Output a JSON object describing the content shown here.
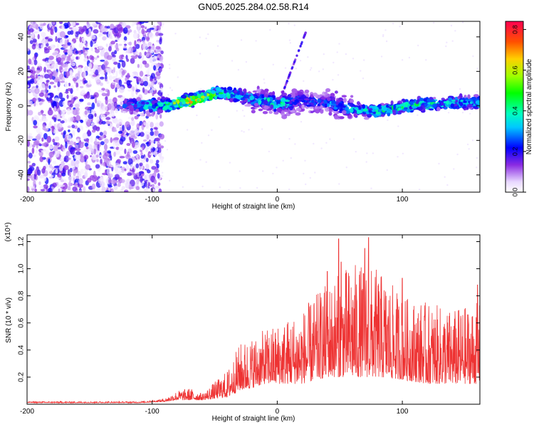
{
  "title": "GN05.2025.284.02.58.R14",
  "chart_data": [
    {
      "type": "heatmap",
      "xlabel": "Height of straight line (km)",
      "ylabel": "Frequency (Hz)",
      "xlim": [
        -200,
        162
      ],
      "ylim": [
        -50,
        49
      ],
      "xticks": [
        -200,
        -100,
        0,
        100
      ],
      "yticks": [
        -40,
        -20,
        0,
        20,
        40
      ],
      "grid": false,
      "colorbar": {
        "label": "Normalized spectral amplitude",
        "range": [
          0.0,
          0.84
        ],
        "ticks": [
          0.0,
          0.2,
          0.4,
          0.6,
          0.8
        ]
      },
      "noise_region_xlim": [
        -200,
        -92
      ],
      "ridge_x": [
        -120,
        -100,
        -85,
        -70,
        -60,
        -50,
        -40,
        -30,
        -20,
        -10,
        0,
        10,
        20,
        40,
        60,
        80,
        100,
        120,
        140,
        160
      ],
      "ridge_y": [
        1,
        0,
        1,
        3,
        5,
        7,
        7,
        6,
        4,
        3,
        1,
        2,
        3,
        2,
        -2,
        -3,
        0,
        1,
        2,
        2
      ],
      "ridge_amplitude": [
        0.3,
        0.45,
        0.6,
        0.75,
        0.7,
        0.55,
        0.45,
        0.4,
        0.4,
        0.45,
        0.5,
        0.4,
        0.3,
        0.35,
        0.4,
        0.45,
        0.5,
        0.45,
        0.4,
        0.4
      ]
    },
    {
      "type": "line",
      "xlabel": "Height of straight line (km)",
      "ylabel": "SNR (10 * v/v)",
      "y_multiplier": "(x10⁴)",
      "xlim": [
        -200,
        162
      ],
      "ylim": [
        0,
        1.25
      ],
      "xticks": [
        -200,
        -100,
        0,
        100
      ],
      "yticks": [
        0.2,
        0.4,
        0.6,
        0.8,
        1.0,
        1.2
      ],
      "ytick_labels": [
        "0.2",
        "0.4",
        "0.6",
        "0.8",
        "1.0",
        "1.2"
      ],
      "grid": false,
      "series_color": "#ee3333",
      "envelope_x": [
        -200,
        -150,
        -110,
        -90,
        -80,
        -70,
        -60,
        -40,
        -30,
        -20,
        -10,
        0,
        20,
        40,
        60,
        80,
        100,
        120,
        140,
        160
      ],
      "envelope_y": [
        0.02,
        0.02,
        0.02,
        0.04,
        0.1,
        0.12,
        0.08,
        0.25,
        0.45,
        0.5,
        0.55,
        0.6,
        0.7,
        0.9,
        1.05,
        1.0,
        0.8,
        0.75,
        0.7,
        0.75
      ],
      "baseline_y": [
        0.01,
        0.01,
        0.01,
        0.02,
        0.03,
        0.03,
        0.03,
        0.05,
        0.1,
        0.12,
        0.15,
        0.15,
        0.15,
        0.2,
        0.2,
        0.2,
        0.18,
        0.15,
        0.15,
        0.15
      ],
      "peaks": [
        {
          "x": 49,
          "y": 1.22
        },
        {
          "x": 73,
          "y": 1.23
        },
        {
          "x": 70,
          "y": 1.15
        },
        {
          "x": 51,
          "y": 1.05
        },
        {
          "x": 40,
          "y": 0.98
        },
        {
          "x": 160,
          "y": 0.88
        },
        {
          "x": 100,
          "y": 0.93
        }
      ]
    }
  ]
}
